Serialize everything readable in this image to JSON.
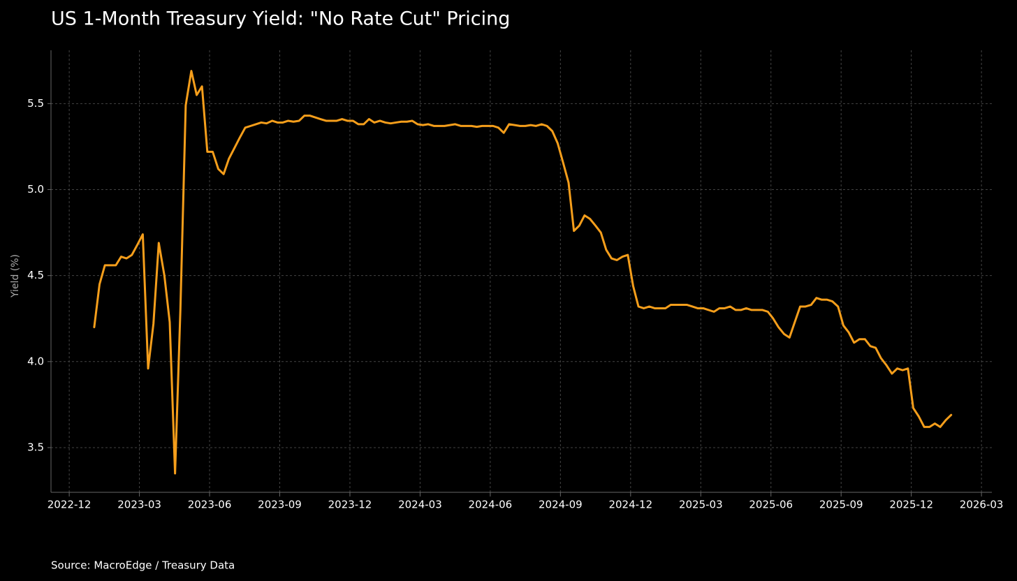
{
  "chart_data": {
    "type": "line",
    "title": "US 1-Month Treasury Yield: \"No Rate Cut\" Pricing",
    "y_label": "Yield (%)",
    "source": "Source: MacroEdge / Treasury Data",
    "xlim": [
      2022.852,
      2026.204
    ],
    "ylim": [
      3.24,
      5.81
    ],
    "xticks": [
      {
        "value": 2022.917,
        "label": "2022-12"
      },
      {
        "value": 2023.167,
        "label": "2023-03"
      },
      {
        "value": 2023.417,
        "label": "2023-06"
      },
      {
        "value": 2023.667,
        "label": "2023-09"
      },
      {
        "value": 2023.917,
        "label": "2023-12"
      },
      {
        "value": 2024.167,
        "label": "2024-03"
      },
      {
        "value": 2024.417,
        "label": "2024-06"
      },
      {
        "value": 2024.667,
        "label": "2024-09"
      },
      {
        "value": 2024.917,
        "label": "2024-12"
      },
      {
        "value": 2025.167,
        "label": "2025-03"
      },
      {
        "value": 2025.417,
        "label": "2025-06"
      },
      {
        "value": 2025.667,
        "label": "2025-09"
      },
      {
        "value": 2025.917,
        "label": "2025-12"
      },
      {
        "value": 2026.167,
        "label": "2026-03"
      }
    ],
    "yticks": [
      3.5,
      {
        "value": 4,
        "label": "4.0"
      },
      4.5,
      {
        "value": 5,
        "label": "5.0"
      },
      5.5
    ],
    "grid": true,
    "x": [
      2023.006,
      2023.025,
      2023.044,
      2023.064,
      2023.083,
      2023.102,
      2023.121,
      2023.14,
      2023.16,
      2023.179,
      2023.198,
      2023.217,
      2023.236,
      2023.256,
      2023.275,
      2023.294,
      2023.313,
      2023.332,
      2023.352,
      2023.371,
      2023.39,
      2023.409,
      2023.428,
      2023.448,
      2023.467,
      2023.486,
      2023.505,
      2023.524,
      2023.544,
      2023.563,
      2023.582,
      2023.601,
      2023.62,
      2023.64,
      2023.659,
      2023.678,
      2023.697,
      2023.716,
      2023.736,
      2023.755,
      2023.774,
      2023.793,
      2023.812,
      2023.832,
      2023.851,
      2023.87,
      2023.889,
      2023.908,
      2023.928,
      2023.947,
      2023.966,
      2023.985,
      2024.004,
      2024.024,
      2024.043,
      2024.062,
      2024.081,
      2024.1,
      2024.12,
      2024.139,
      2024.158,
      2024.177,
      2024.196,
      2024.216,
      2024.235,
      2024.254,
      2024.273,
      2024.292,
      2024.312,
      2024.331,
      2024.35,
      2024.369,
      2024.388,
      2024.408,
      2024.427,
      2024.446,
      2024.465,
      2024.484,
      2024.504,
      2024.523,
      2024.542,
      2024.561,
      2024.58,
      2024.6,
      2024.619,
      2024.638,
      2024.657,
      2024.676,
      2024.696,
      2024.715,
      2024.734,
      2024.753,
      2024.772,
      2024.792,
      2024.811,
      2024.83,
      2024.849,
      2024.868,
      2024.888,
      2024.907,
      2024.926,
      2024.945,
      2024.964,
      2024.984,
      2025.003,
      2025.022,
      2025.041,
      2025.06,
      2025.08,
      2025.099,
      2025.118,
      2025.137,
      2025.156,
      2025.176,
      2025.195,
      2025.214,
      2025.233,
      2025.252,
      2025.272,
      2025.291,
      2025.31,
      2025.329,
      2025.348,
      2025.368,
      2025.387,
      2025.406,
      2025.425,
      2025.444,
      2025.464,
      2025.483,
      2025.502,
      2025.521,
      2025.54,
      2025.56,
      2025.579,
      2025.598,
      2025.617,
      2025.636,
      2025.656,
      2025.675,
      2025.694,
      2025.713,
      2025.732,
      2025.752,
      2025.771,
      2025.79,
      2025.809,
      2025.828,
      2025.848,
      2025.867,
      2025.886,
      2025.905,
      2025.924,
      2025.944,
      2025.963,
      2025.982,
      2026.001,
      2026.02,
      2026.04,
      2026.059
    ],
    "series": [
      {
        "name": "US 1-Month Treasury Yield",
        "color": "#f59e1b",
        "values": [
          4.2,
          4.45,
          4.56,
          4.56,
          4.56,
          4.61,
          4.6,
          4.62,
          4.68,
          4.74,
          3.96,
          4.22,
          4.69,
          4.5,
          4.23,
          3.35,
          4.3,
          5.49,
          5.69,
          5.55,
          5.6,
          5.22,
          5.22,
          5.12,
          5.09,
          5.18,
          5.24,
          5.3,
          5.36,
          5.37,
          5.38,
          5.39,
          5.385,
          5.4,
          5.39,
          5.39,
          5.4,
          5.395,
          5.4,
          5.43,
          5.43,
          5.42,
          5.41,
          5.4,
          5.4,
          5.4,
          5.41,
          5.4,
          5.4,
          5.38,
          5.38,
          5.41,
          5.39,
          5.4,
          5.39,
          5.385,
          5.39,
          5.395,
          5.395,
          5.4,
          5.38,
          5.375,
          5.38,
          5.37,
          5.37,
          5.37,
          5.375,
          5.38,
          5.37,
          5.37,
          5.37,
          5.365,
          5.37,
          5.37,
          5.37,
          5.36,
          5.33,
          5.38,
          5.375,
          5.37,
          5.37,
          5.375,
          5.37,
          5.38,
          5.37,
          5.34,
          5.27,
          5.16,
          5.04,
          4.76,
          4.79,
          4.85,
          4.83,
          4.79,
          4.75,
          4.65,
          4.6,
          4.59,
          4.61,
          4.62,
          4.44,
          4.32,
          4.31,
          4.32,
          4.31,
          4.31,
          4.31,
          4.33,
          4.33,
          4.33,
          4.33,
          4.32,
          4.31,
          4.31,
          4.3,
          4.29,
          4.31,
          4.31,
          4.32,
          4.3,
          4.3,
          4.31,
          4.3,
          4.3,
          4.3,
          4.29,
          4.25,
          4.2,
          4.16,
          4.14,
          4.23,
          4.32,
          4.32,
          4.33,
          4.37,
          4.36,
          4.36,
          4.35,
          4.32,
          4.21,
          4.17,
          4.11,
          4.13,
          4.13,
          4.09,
          4.08,
          4.02,
          3.98,
          3.93,
          3.96,
          3.95,
          3.96,
          3.73,
          3.68,
          3.62,
          3.62,
          3.64,
          3.62,
          3.66,
          3.69
        ]
      }
    ]
  }
}
